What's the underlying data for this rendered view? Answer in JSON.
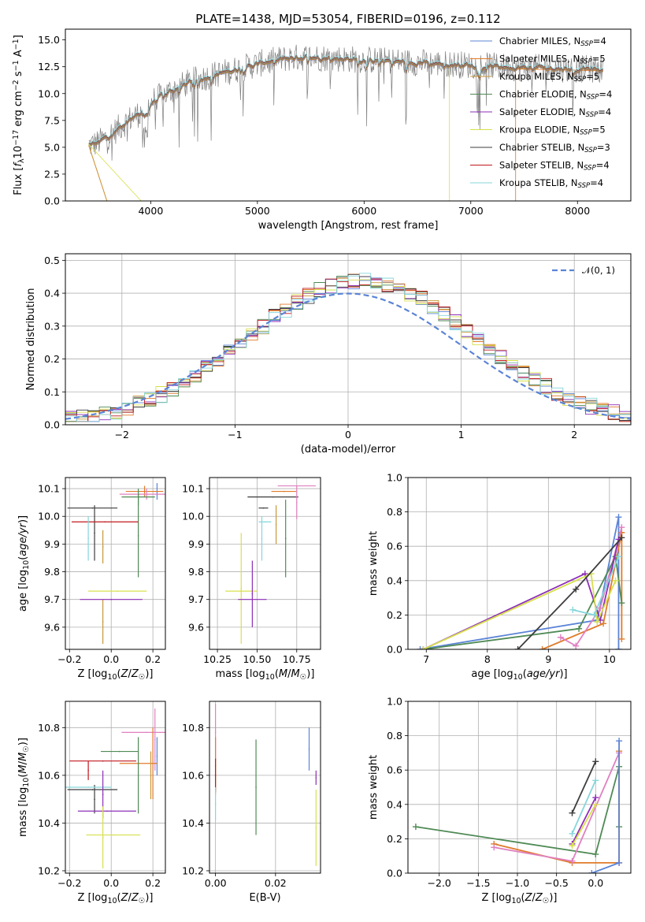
{
  "colors": {
    "miles_chabrier": "#5b84d6",
    "miles_salpeter": "#e07b2a",
    "miles_kroupa": "#c9973a",
    "elodie_chabrier": "#4f8a55",
    "elodie_salpeter": "#8e2fb8",
    "elodie_kroupa": "#d7e04c",
    "stelib_chabrier": "#3d3d3d",
    "stelib_salpeter": "#c0181e",
    "stelib_kroupa": "#86d6db",
    "pink": "#e080c0",
    "gray": "#808080",
    "gaussian": "#5b84d6"
  },
  "chart_data": [
    {
      "id": "spectrum",
      "type": "line",
      "title": "PLATE=1438, MJD=53054, FIBERID=0196, z=0.112",
      "xlabel": "wavelength [Angstrom, rest frame]",
      "ylabel": "Flux [f_λ10^-17 erg cm^-2 s^-1 A^-1]",
      "xlim": [
        3200,
        8500
      ],
      "ylim": [
        0,
        16
      ],
      "xticks": [
        "4000",
        "5000",
        "6000",
        "7000",
        "8000"
      ],
      "yticks": [
        "0.0",
        "2.5",
        "5.0",
        "7.5",
        "10.0",
        "12.5",
        "15.0"
      ],
      "grid": false,
      "legend": "upper right",
      "series": [
        {
          "name": "Chabrier MILES, N_SSP=4",
          "color_key": "miles_chabrier"
        },
        {
          "name": "Salpeter MILES, N_SSP=5",
          "color_key": "miles_salpeter"
        },
        {
          "name": "Kroupa MILES, N_SSP=5",
          "color_key": "miles_kroupa"
        },
        {
          "name": "Chabrier ELODIE, N_SSP=4",
          "color_key": "elodie_chabrier"
        },
        {
          "name": "Salpeter ELODIE, N_SSP=4",
          "color_key": "elodie_salpeter"
        },
        {
          "name": "Kroupa ELODIE, N_SSP=5",
          "color_key": "elodie_kroupa"
        },
        {
          "name": "Chabrier STELIB, N_SSP=3",
          "color_key": "stelib_chabrier"
        },
        {
          "name": "Salpeter STELIB, N_SSP=4",
          "color_key": "stelib_salpeter"
        },
        {
          "name": "Kroupa STELIB, N_SSP=4",
          "color_key": "stelib_kroupa"
        }
      ],
      "continuum": {
        "x": [
          3420,
          3500,
          3600,
          3700,
          3800,
          3900,
          4000,
          4100,
          4200,
          4300,
          4400,
          4500,
          4700,
          4900,
          5100,
          5300,
          5500,
          5700,
          5900,
          6100,
          6300,
          6500,
          6700,
          6900,
          7100,
          7300,
          7500,
          7700,
          7900,
          8100,
          8240
        ],
        "y": [
          5.2,
          5.4,
          6.0,
          6.8,
          7.6,
          8.2,
          9.2,
          9.8,
          10.3,
          10.8,
          11.2,
          11.5,
          12.0,
          12.5,
          13.0,
          13.3,
          13.4,
          13.3,
          13.2,
          13.1,
          13.0,
          12.9,
          12.8,
          12.7,
          12.6,
          12.5,
          12.4,
          12.4,
          12.3,
          12.3,
          12.2
        ]
      }
    },
    {
      "id": "residuals",
      "type": "bar",
      "xlabel": "(data-model)/error",
      "ylabel": "Normed distribution",
      "xlim": [
        -2.5,
        2.5
      ],
      "ylim": [
        0,
        0.52
      ],
      "xticks": [
        "−2",
        "−1",
        "0",
        "1",
        "2"
      ],
      "yticks": [
        "0.0",
        "0.1",
        "0.2",
        "0.3",
        "0.4",
        "0.5"
      ],
      "grid": true,
      "legend": "upper right",
      "gaussian_label": "𝒩(0, 1)",
      "bin_width": 0.1
    },
    {
      "id": "age_vs_Z",
      "type": "scatter",
      "xlabel": "Z [log10(Z/Z☉)]",
      "ylabel": "age  [log10(age/yr)]",
      "xlim": [
        -0.22,
        0.26
      ],
      "ylim": [
        9.52,
        10.14
      ],
      "xticks": [
        "−0.2",
        "0.0",
        "0.2"
      ],
      "yticks": [
        "9.6",
        "9.7",
        "9.8",
        "9.9",
        "10.0",
        "10.1"
      ],
      "grid": true,
      "points": [
        {
          "x": 0.22,
          "xerr": 0.0,
          "y": 10.09,
          "yerr": 0.03,
          "color_key": "miles_chabrier"
        },
        {
          "x": 0.16,
          "xerr": 0.09,
          "y": 10.09,
          "yerr": 0.02,
          "color_key": "miles_salpeter"
        },
        {
          "x": 0.17,
          "xerr": 0.13,
          "y": 10.08,
          "yerr": 0.02,
          "color_key": "pink"
        },
        {
          "x": 0.13,
          "xerr": 0.08,
          "y": 10.07,
          "yerr": 0.03,
          "color_key": "elodie_chabrier"
        },
        {
          "x": 0.13,
          "xerr": 0.0,
          "y": 9.93,
          "yerr": 0.15,
          "color_key": "elodie_chabrier"
        },
        {
          "x": -0.09,
          "xerr": 0.12,
          "y": 10.03,
          "yerr": 0.0,
          "color_key": "stelib_chabrier"
        },
        {
          "x": -0.08,
          "xerr": 0.0,
          "y": 9.94,
          "yerr": 0.1,
          "color_key": "stelib_chabrier"
        },
        {
          "x": -0.03,
          "xerr": 0.16,
          "y": 9.98,
          "yerr": 0.0,
          "color_key": "stelib_salpeter"
        },
        {
          "x": -0.11,
          "xerr": 0.0,
          "y": 9.92,
          "yerr": 0.08,
          "color_key": "stelib_kroupa"
        },
        {
          "x": -0.04,
          "xerr": 0.0,
          "y": 9.89,
          "yerr": 0.06,
          "color_key": "miles_kroupa"
        },
        {
          "x": -0.04,
          "xerr": 0.0,
          "y": 9.62,
          "yerr": 0.08,
          "color_key": "miles_kroupa"
        },
        {
          "x": 0.03,
          "xerr": 0.14,
          "y": 9.73,
          "yerr": 0.0,
          "color_key": "elodie_kroupa"
        },
        {
          "x": 0.0,
          "xerr": 0.15,
          "y": 9.7,
          "yerr": 0.0,
          "color_key": "elodie_salpeter"
        }
      ]
    },
    {
      "id": "age_vs_mass",
      "type": "scatter",
      "xlabel": "mass [log10(M/M☉)]",
      "xlim": [
        10.2,
        10.9
      ],
      "ylim": [
        9.52,
        10.14
      ],
      "xticks": [
        "10.25",
        "10.50",
        "10.75"
      ],
      "yticks": [
        "9.6",
        "9.7",
        "9.8",
        "9.9",
        "10.0",
        "10.1"
      ],
      "grid": true,
      "points": [
        {
          "x": 10.75,
          "xerr": 0.12,
          "y": 10.11,
          "yerr": 0.0,
          "color_key": "pink"
        },
        {
          "x": 10.67,
          "xerr": 0.08,
          "y": 10.09,
          "yerr": 0.0,
          "color_key": "miles_salpeter"
        },
        {
          "x": 10.6,
          "xerr": 0.16,
          "y": 10.07,
          "yerr": 0.0,
          "color_key": "stelib_chabrier"
        },
        {
          "x": 10.68,
          "xerr": 0.0,
          "y": 9.92,
          "yerr": 0.14,
          "color_key": "elodie_chabrier"
        },
        {
          "x": 10.75,
          "xerr": 0.0,
          "y": 10.05,
          "yerr": 0.06,
          "color_key": "pink"
        },
        {
          "x": 10.54,
          "xerr": 0.03,
          "y": 10.03,
          "yerr": 0.0,
          "color_key": "stelib_chabrier"
        },
        {
          "x": 10.53,
          "xerr": 0.0,
          "y": 9.92,
          "yerr": 0.08,
          "color_key": "stelib_kroupa"
        },
        {
          "x": 10.55,
          "xerr": 0.04,
          "y": 9.98,
          "yerr": 0.0,
          "color_key": "stelib_kroupa"
        },
        {
          "x": 10.62,
          "xerr": 0.0,
          "y": 9.97,
          "yerr": 0.07,
          "color_key": "miles_kroupa"
        },
        {
          "x": 10.4,
          "xerr": 0.0,
          "y": 9.74,
          "yerr": 0.2,
          "color_key": "elodie_kroupa"
        },
        {
          "x": 10.4,
          "xerr": 0.1,
          "y": 9.73,
          "yerr": 0.0,
          "color_key": "elodie_kroupa"
        },
        {
          "x": 10.47,
          "xerr": 0.09,
          "y": 9.7,
          "yerr": 0.0,
          "color_key": "elodie_salpeter"
        },
        {
          "x": 10.47,
          "xerr": 0.0,
          "y": 9.72,
          "yerr": 0.12,
          "color_key": "elodie_salpeter"
        }
      ]
    },
    {
      "id": "weight_vs_age",
      "type": "line",
      "xlabel": "age  [log10(age/yr)]",
      "ylabel": "mass weight",
      "xlim": [
        6.7,
        10.35
      ],
      "ylim": [
        0,
        1
      ],
      "xticks": [
        "7",
        "8",
        "9",
        "10"
      ],
      "yticks": [
        "0.0",
        "0.2",
        "0.4",
        "0.6",
        "0.8",
        "1.0"
      ],
      "grid": true,
      "series": [
        {
          "color_key": "miles_chabrier",
          "x": [
            6.9,
            9.8,
            10.15,
            10.15
          ],
          "y": [
            0.0,
            0.17,
            0.77,
            0.0
          ]
        },
        {
          "color_key": "miles_salpeter",
          "x": [
            8.9,
            9.9,
            10.2,
            10.2
          ],
          "y": [
            0.0,
            0.15,
            0.68,
            0.06
          ]
        },
        {
          "color_key": "pink",
          "x": [
            9.2,
            9.45,
            9.85,
            10.2
          ],
          "y": [
            0.07,
            0.02,
            0.24,
            0.71
          ]
        },
        {
          "color_key": "elodie_chabrier",
          "x": [
            6.95,
            9.5,
            10.1,
            10.2
          ],
          "y": [
            0.0,
            0.12,
            0.54,
            0.27
          ]
        },
        {
          "color_key": "elodie_salpeter",
          "x": [
            6.95,
            9.6,
            9.85,
            10.15
          ],
          "y": [
            0.0,
            0.44,
            0.17,
            0.64
          ]
        },
        {
          "color_key": "elodie_kroupa",
          "x": [
            6.95,
            9.7,
            9.8,
            10.1
          ],
          "y": [
            0.0,
            0.44,
            0.16,
            0.4
          ]
        },
        {
          "color_key": "stelib_chabrier",
          "x": [
            8.5,
            9.45,
            10.2
          ],
          "y": [
            0.0,
            0.35,
            0.65
          ]
        },
        {
          "color_key": "stelib_kroupa",
          "x": [
            9.4,
            9.75,
            10.15
          ],
          "y": [
            0.23,
            0.2,
            0.54
          ]
        }
      ]
    },
    {
      "id": "mass_vs_Z",
      "type": "scatter",
      "xlabel": "Z [log10(Z/Z☉)]",
      "ylabel": "mass [log10(M/M☉)]",
      "xlim": [
        -0.22,
        0.26
      ],
      "ylim": [
        10.19,
        10.91
      ],
      "xticks": [
        "−0.2",
        "0.0",
        "0.2"
      ],
      "yticks": [
        "10.2",
        "10.4",
        "10.6",
        "10.8"
      ],
      "grid": true,
      "points": [
        {
          "x": 0.21,
          "xerr": 0.0,
          "y": 10.75,
          "yerr": 0.13,
          "color_key": "pink"
        },
        {
          "x": 0.17,
          "xerr": 0.12,
          "y": 10.78,
          "yerr": 0.0,
          "color_key": "pink"
        },
        {
          "x": 0.22,
          "xerr": 0.0,
          "y": 10.68,
          "yerr": 0.08,
          "color_key": "miles_chabrier"
        },
        {
          "x": 0.2,
          "xerr": 0.0,
          "y": 10.65,
          "yerr": 0.15,
          "color_key": "miles_salpeter"
        },
        {
          "x": 0.13,
          "xerr": 0.09,
          "y": 10.65,
          "yerr": 0.0,
          "color_key": "miles_salpeter"
        },
        {
          "x": 0.13,
          "xerr": 0.0,
          "y": 10.6,
          "yerr": 0.16,
          "color_key": "elodie_chabrier"
        },
        {
          "x": 0.04,
          "xerr": 0.09,
          "y": 10.7,
          "yerr": 0.0,
          "color_key": "elodie_chabrier"
        },
        {
          "x": -0.04,
          "xerr": 0.16,
          "y": 10.66,
          "yerr": 0.0,
          "color_key": "stelib_salpeter"
        },
        {
          "x": -0.11,
          "xerr": 0.0,
          "y": 10.62,
          "yerr": 0.04,
          "color_key": "stelib_salpeter"
        },
        {
          "x": -0.09,
          "xerr": 0.12,
          "y": 10.54,
          "yerr": 0.0,
          "color_key": "stelib_chabrier"
        },
        {
          "x": -0.08,
          "xerr": 0.0,
          "y": 10.5,
          "yerr": 0.06,
          "color_key": "stelib_chabrier"
        },
        {
          "x": -0.11,
          "xerr": 0.11,
          "y": 10.55,
          "yerr": 0.0,
          "color_key": "stelib_kroupa"
        },
        {
          "x": -0.04,
          "xerr": 0.0,
          "y": 10.52,
          "yerr": 0.1,
          "color_key": "elodie_salpeter"
        },
        {
          "x": -0.02,
          "xerr": 0.14,
          "y": 10.45,
          "yerr": 0.0,
          "color_key": "elodie_salpeter"
        },
        {
          "x": 0.01,
          "xerr": 0.13,
          "y": 10.35,
          "yerr": 0.0,
          "color_key": "elodie_kroupa"
        },
        {
          "x": -0.04,
          "xerr": 0.0,
          "y": 10.34,
          "yerr": 0.13,
          "color_key": "elodie_kroupa"
        },
        {
          "x": 0.19,
          "xerr": 0.0,
          "y": 10.6,
          "yerr": 0.1,
          "color_key": "miles_kroupa"
        }
      ]
    },
    {
      "id": "mass_vs_ebv",
      "type": "scatter",
      "xlabel": "E(B-V)",
      "xlim": [
        -0.002,
        0.035
      ],
      "ylim": [
        10.19,
        10.91
      ],
      "xticks": [
        "0.00",
        "0.02"
      ],
      "yticks": [
        "10.2",
        "10.4",
        "10.6",
        "10.8"
      ],
      "grid": true,
      "points": [
        {
          "x": 0.0,
          "xerr": 0.0,
          "y": 10.78,
          "yerr": 0.12,
          "color_key": "pink"
        },
        {
          "x": 0.0,
          "xerr": 0.0,
          "y": 10.64,
          "yerr": 0.12,
          "color_key": "miles_salpeter"
        },
        {
          "x": 0.0,
          "xerr": 0.0,
          "y": 10.6,
          "yerr": 0.07,
          "color_key": "stelib_salpeter"
        },
        {
          "x": 0.0,
          "xerr": 0.0,
          "y": 10.48,
          "yerr": 0.07,
          "color_key": "stelib_kroupa"
        },
        {
          "x": 0.0135,
          "xerr": 0.0,
          "y": 10.55,
          "yerr": 0.2,
          "color_key": "elodie_chabrier"
        },
        {
          "x": 0.0312,
          "xerr": 0.0,
          "y": 10.71,
          "yerr": 0.09,
          "color_key": "miles_chabrier"
        },
        {
          "x": 0.0335,
          "xerr": 0.0,
          "y": 10.59,
          "yerr": 0.03,
          "color_key": "elodie_salpeter"
        },
        {
          "x": 0.0335,
          "xerr": 0.0,
          "y": 10.38,
          "yerr": 0.16,
          "color_key": "elodie_kroupa"
        }
      ]
    },
    {
      "id": "weight_vs_Z",
      "type": "line",
      "xlabel": "Z [log10(Z/Z☉)]",
      "ylabel": "mass weight",
      "xlim": [
        -2.4,
        0.45
      ],
      "ylim": [
        0,
        1
      ],
      "xticks": [
        "−2.0",
        "−1.5",
        "−1.0",
        "−0.5",
        "0.0"
      ],
      "yticks": [
        "0.0",
        "0.2",
        "0.4",
        "0.6",
        "0.8",
        "1.0"
      ],
      "grid": true,
      "series": [
        {
          "color_key": "elodie_chabrier",
          "x": [
            -2.3,
            0.0,
            0.3,
            0.3
          ],
          "y": [
            0.27,
            0.11,
            0.62,
            0.27
          ]
        },
        {
          "color_key": "miles_salpeter",
          "x": [
            -1.3,
            -0.3,
            0.3,
            0.3
          ],
          "y": [
            0.17,
            0.06,
            0.06,
            0.71
          ]
        },
        {
          "color_key": "pink",
          "x": [
            -1.3,
            -0.3,
            0.3
          ],
          "y": [
            0.15,
            0.07,
            0.7
          ]
        },
        {
          "color_key": "miles_chabrier",
          "x": [
            -0.05,
            0.3,
            0.3
          ],
          "y": [
            0.0,
            0.06,
            0.77
          ]
        },
        {
          "color_key": "stelib_chabrier",
          "x": [
            -0.3,
            0.0
          ],
          "y": [
            0.35,
            0.65
          ]
        },
        {
          "color_key": "elodie_salpeter",
          "x": [
            -0.3,
            0.0
          ],
          "y": [
            0.17,
            0.44
          ]
        },
        {
          "color_key": "elodie_kroupa",
          "x": [
            -0.3,
            0.0
          ],
          "y": [
            0.16,
            0.4
          ]
        },
        {
          "color_key": "stelib_kroupa",
          "x": [
            -0.3,
            0.0
          ],
          "y": [
            0.23,
            0.54
          ]
        }
      ]
    }
  ]
}
